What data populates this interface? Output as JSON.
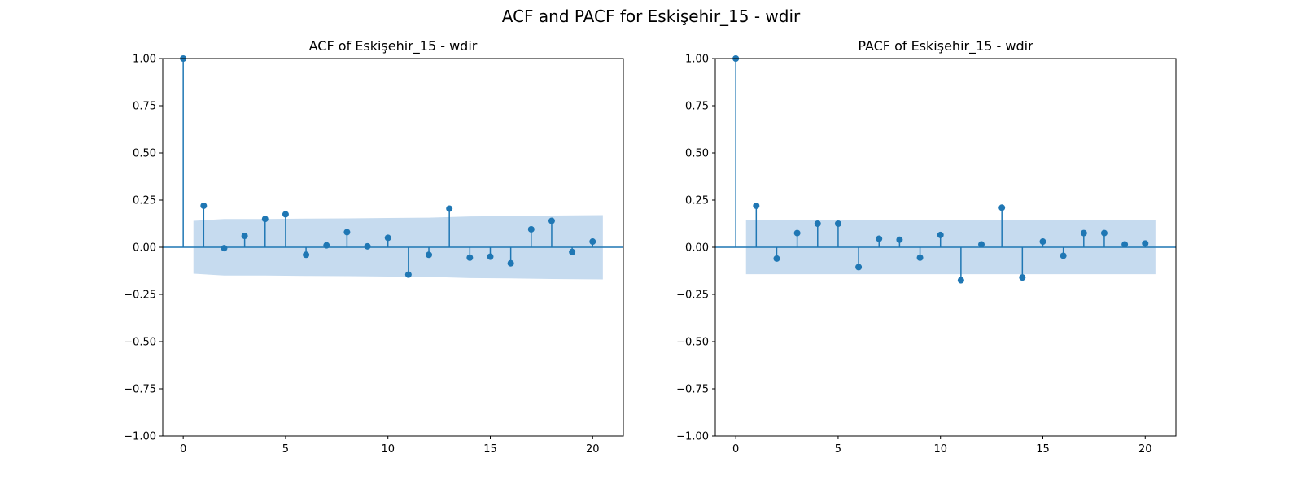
{
  "figure": {
    "title": "ACF and PACF for Eskişehir_15 - wdir"
  },
  "chart_data": [
    {
      "type": "stem",
      "title": "ACF of Eskişehir_15 - wdir",
      "xlabel": "",
      "ylabel": "",
      "xlim": [
        -1,
        21.5
      ],
      "ylim": [
        -1.0,
        1.0
      ],
      "xticks": [
        0,
        5,
        10,
        15,
        20
      ],
      "yticks": [
        "1.00",
        "0.75",
        "0.50",
        "0.25",
        "0.00",
        "−0.25",
        "−0.50",
        "−0.75",
        "−1.00"
      ],
      "lags": [
        0,
        1,
        2,
        3,
        4,
        5,
        6,
        7,
        8,
        9,
        10,
        11,
        12,
        13,
        14,
        15,
        16,
        17,
        18,
        19,
        20
      ],
      "values": [
        1.0,
        0.22,
        -0.005,
        0.06,
        0.15,
        0.175,
        -0.04,
        0.01,
        0.08,
        0.005,
        0.05,
        -0.145,
        -0.04,
        0.205,
        -0.055,
        -0.05,
        -0.085,
        0.095,
        0.14,
        -0.025,
        0.03
      ],
      "confint": [
        [
          0.5,
          0.14
        ],
        [
          2,
          0.15
        ],
        [
          4,
          0.15
        ],
        [
          6,
          0.152
        ],
        [
          8,
          0.153
        ],
        [
          10,
          0.155
        ],
        [
          12,
          0.157
        ],
        [
          14,
          0.163
        ],
        [
          16,
          0.165
        ],
        [
          18,
          0.168
        ],
        [
          20.5,
          0.17
        ]
      ],
      "colors": {
        "stem": "#1f77b4",
        "band": "#c6dbef"
      }
    },
    {
      "type": "stem",
      "title": "PACF of Eskişehir_15 - wdir",
      "xlabel": "",
      "ylabel": "",
      "xlim": [
        -1,
        21.5
      ],
      "ylim": [
        -1.0,
        1.0
      ],
      "xticks": [
        0,
        5,
        10,
        15,
        20
      ],
      "yticks": [
        "1.00",
        "0.75",
        "0.50",
        "0.25",
        "0.00",
        "−0.25",
        "−0.50",
        "−0.75",
        "−1.00"
      ],
      "lags": [
        0,
        1,
        2,
        3,
        4,
        5,
        6,
        7,
        8,
        9,
        10,
        11,
        12,
        13,
        14,
        15,
        16,
        17,
        18,
        19,
        20
      ],
      "values": [
        1.0,
        0.22,
        -0.06,
        0.075,
        0.125,
        0.125,
        -0.105,
        0.045,
        0.04,
        -0.055,
        0.065,
        -0.175,
        0.015,
        0.21,
        -0.16,
        0.03,
        -0.045,
        0.075,
        0.075,
        0.015,
        0.02
      ],
      "confint": [
        [
          0.5,
          0.143
        ],
        [
          20.5,
          0.143
        ]
      ],
      "colors": {
        "stem": "#1f77b4",
        "band": "#c6dbef"
      }
    }
  ]
}
